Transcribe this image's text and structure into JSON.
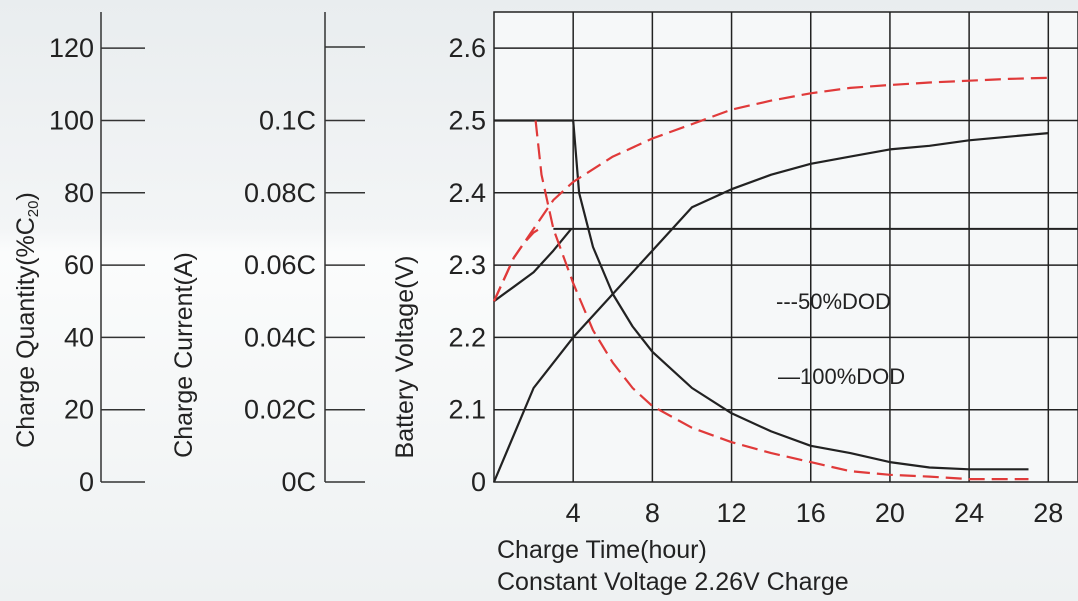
{
  "chart_data": {
    "type": "line",
    "xlabel": "Charge Time(hour)",
    "subtitle": "Constant Voltage 2.26V Charge",
    "x_ticks": [
      "4",
      "8",
      "12",
      "16",
      "20",
      "24",
      "28"
    ],
    "xlim": [
      0,
      29.5
    ],
    "axes": {
      "charge_quantity": {
        "label": "Charge Quantity(%C",
        "label_sub": "20",
        "label_close": ")",
        "ticks": [
          "0",
          "20",
          "40",
          "60",
          "80",
          "100",
          "120"
        ],
        "ylim": [
          0,
          130
        ]
      },
      "charge_current": {
        "label": "Charge Current(A)",
        "ticks": [
          "0C",
          "0.02C",
          "0.04C",
          "0.06C",
          "0.08C",
          "0.1C"
        ],
        "ylim": [
          0,
          0.13
        ]
      },
      "battery_voltage": {
        "label": "Battery Voltage(V)",
        "ticks": [
          "0",
          "2.1",
          "2.2",
          "2.3",
          "2.4",
          "2.5",
          "2.6"
        ],
        "ylim": [
          2.0,
          2.65
        ]
      }
    },
    "legend": [
      {
        "name": "---50%DOD",
        "color": "#e03a3a",
        "dash": true
      },
      {
        "name": "—100%DOD",
        "color": "#222222",
        "dash": false
      }
    ],
    "colors": {
      "dod50": "#e03a3a",
      "dod100": "#222222"
    },
    "reference_line": {
      "axis": "battery_voltage",
      "value": 2.35,
      "xrange": [
        3,
        29.5
      ]
    },
    "series": [
      {
        "key": "voltage_100",
        "axis": "battery_voltage",
        "style": "solid",
        "x": [
          0,
          1,
          2,
          3,
          3.9
        ],
        "y": [
          2.25,
          2.27,
          2.29,
          2.32,
          2.35
        ]
      },
      {
        "key": "voltage_50",
        "axis": "battery_voltage",
        "style": "dashed",
        "x": [
          0,
          0.5,
          1,
          1.5,
          2,
          2.3
        ],
        "y": [
          2.25,
          2.28,
          2.31,
          2.33,
          2.345,
          2.35
        ]
      },
      {
        "key": "current_100",
        "axis": "charge_current",
        "style": "solid",
        "x": [
          0,
          3.9,
          4,
          4.3,
          5,
          6,
          7,
          8,
          10,
          12,
          14,
          16,
          18,
          20,
          22,
          24,
          26,
          27
        ],
        "y": [
          0.1,
          0.1,
          0.1,
          0.08,
          0.065,
          0.052,
          0.043,
          0.036,
          0.026,
          0.019,
          0.014,
          0.01,
          0.008,
          0.0055,
          0.004,
          0.0035,
          0.0035,
          0.0035
        ]
      },
      {
        "key": "current_50",
        "axis": "charge_current",
        "style": "dashed",
        "x": [
          2.1,
          2.4,
          3,
          4,
          5,
          6,
          7,
          8,
          10,
          12,
          14,
          16,
          18,
          20,
          22,
          24,
          26,
          27
        ],
        "y": [
          0.1,
          0.085,
          0.07,
          0.055,
          0.042,
          0.033,
          0.026,
          0.021,
          0.015,
          0.011,
          0.008,
          0.0055,
          0.003,
          0.002,
          0.0015,
          0.0008,
          0.0008,
          0.0008
        ]
      },
      {
        "key": "quantity_100",
        "axis": "charge_quantity",
        "style": "solid",
        "x": [
          0,
          2,
          4,
          6,
          8,
          10,
          12,
          14,
          16,
          18,
          20,
          22,
          24,
          26,
          28
        ],
        "y": [
          0,
          26,
          40,
          52,
          64,
          76,
          81,
          85,
          88,
          90,
          92,
          93,
          94.5,
          95.5,
          96.5
        ]
      },
      {
        "key": "quantity_50",
        "axis": "charge_quantity",
        "style": "dashed",
        "x": [
          0,
          1,
          2,
          3,
          4,
          6,
          8,
          10,
          12,
          14,
          16,
          18,
          20,
          22,
          24,
          26,
          28
        ],
        "y": [
          50,
          62,
          70,
          78,
          83,
          90,
          95,
          99,
          103,
          105.5,
          107.5,
          109,
          109.8,
          110.5,
          111,
          111.5,
          111.8
        ]
      }
    ]
  }
}
